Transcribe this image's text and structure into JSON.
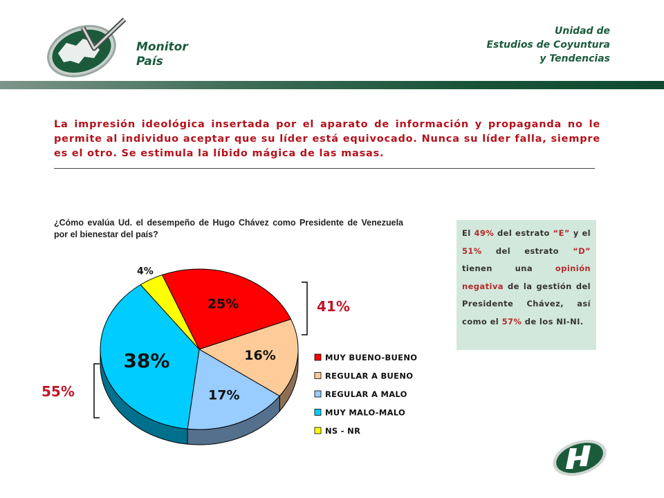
{
  "header": {
    "brand_line1": "Monitor",
    "brand_line2": "País",
    "unit_line1": "Unidad de",
    "unit_line2": "Estudios de Coyuntura",
    "unit_line3": "y Tendencias"
  },
  "statement": "La impresión ideológica insertada por el aparato de información y propaganda no le permite al individuo aceptar que su líder está equivocado. Nunca su líder falla, siempre es el otro. Se estimula la líbido mágica de las masas.",
  "question": "¿Cómo evalúa Ud. el desempeño de Hugo Chávez como Presidente de Venezuela por el bienestar del país?",
  "note": {
    "p1": "El ",
    "v1": "49%",
    "p2": " del estrato ",
    "v2": "“E”",
    "p3": " y el ",
    "v3": "51%",
    "p4": " del estrato ",
    "v4": "“D”",
    "p5": " tienen una ",
    "v5": "opinión negativa",
    "p6": " de la gestión del Presidente Chávez, así como el ",
    "v6": "57%",
    "p7": " de los NI-NI."
  },
  "colors": {
    "green_dark": "#1b5b3c",
    "statement_red": "#b3121c",
    "note_bg": "#d3e8dc",
    "group_label": "#c0152a"
  },
  "chart_data": {
    "type": "pie",
    "title": "",
    "categories": [
      "MUY BUENO-BUENO",
      "REGULAR A BUENO",
      "REGULAR A MALO",
      "MUY MALO-MALO",
      "NS - NR"
    ],
    "values": [
      25,
      16,
      17,
      38,
      4
    ],
    "value_labels": [
      "25%",
      "16%",
      "17%",
      "38%",
      "4%"
    ],
    "colors": [
      "#ff0000",
      "#ffcc99",
      "#99ccff",
      "#00ccff",
      "#ffff00"
    ],
    "legend_position": "right",
    "three_d": true,
    "groups": [
      {
        "label": "41%",
        "members": [
          "MUY BUENO-BUENO",
          "REGULAR A BUENO"
        ]
      },
      {
        "label": "55%",
        "members": [
          "REGULAR A MALO",
          "MUY MALO-MALO"
        ]
      }
    ]
  }
}
